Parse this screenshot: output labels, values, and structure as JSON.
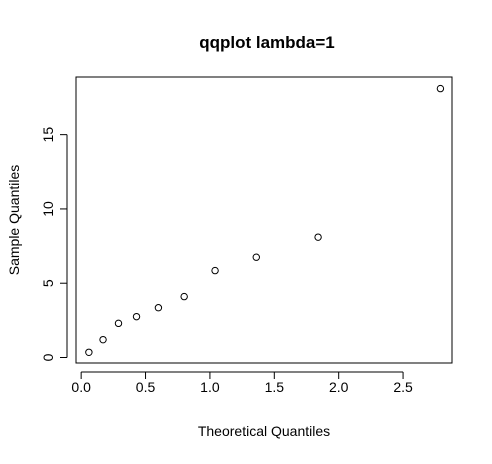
{
  "chart_data": {
    "type": "scatter",
    "title": "qqplot lambda=1",
    "xlabel": "Theoretical Quantiles",
    "ylabel": "Sample Quantiles",
    "xlim": [
      -0.04,
      2.88
    ],
    "ylim": [
      -0.37,
      18.88
    ],
    "x_ticks": [
      0.0,
      0.5,
      1.0,
      1.5,
      2.0,
      2.5
    ],
    "x_tick_labels": [
      "0.0",
      "0.5",
      "1.0",
      "1.5",
      "2.0",
      "2.5"
    ],
    "y_ticks": [
      0,
      5,
      10,
      15
    ],
    "y_tick_labels": [
      "0",
      "5",
      "10",
      "15"
    ],
    "grid": false,
    "legend": "none",
    "marker": "open-circle",
    "series": [
      {
        "x": [
          0.06,
          0.17,
          0.29,
          0.43,
          0.6,
          0.8,
          1.04,
          1.36,
          1.84,
          2.79
        ],
        "y": [
          0.35,
          1.2,
          2.3,
          2.75,
          3.35,
          4.1,
          5.85,
          6.75,
          8.1,
          18.1
        ]
      }
    ]
  }
}
